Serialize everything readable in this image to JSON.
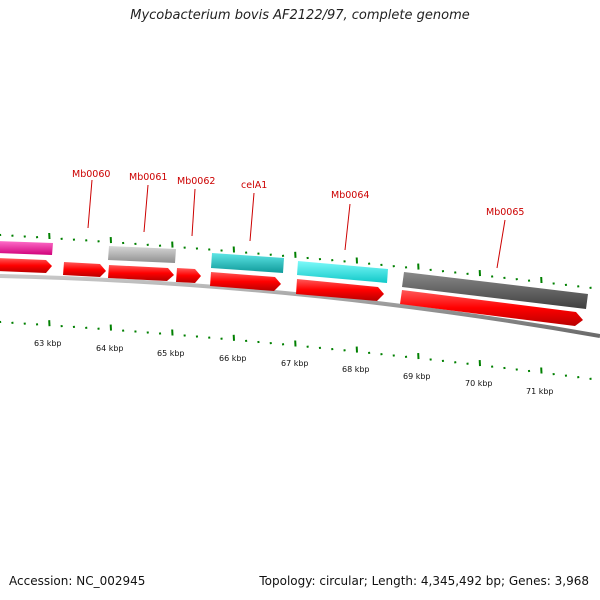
{
  "title": "Mycobacterium bovis AF2122/97, complete genome",
  "footer": {
    "accession": "Accession: NC_002945",
    "stats": "Topology: circular; Length: 4,345,492 bp; Genes: 3,968"
  },
  "gene_labels": [
    "Mb0060",
    "Mb0061",
    "Mb0062",
    "celA1",
    "Mb0064",
    "Mb0065"
  ],
  "kbp_labels": [
    "63 kbp",
    "64 kbp",
    "65 kbp",
    "66 kbp",
    "67 kbp",
    "68 kbp",
    "69 kbp",
    "70 kbp",
    "71 kbp"
  ],
  "colors": {
    "cds": "#ff0000",
    "gene_label": "#cc0000",
    "tick": "#008000",
    "backbone": "#888888",
    "feature_magenta": "#ff1aa0",
    "feature_lightgray": "#bbbbbb",
    "feature_teal": "#1fc4c4",
    "feature_cyan": "#1ff0f0",
    "feature_darkgray": "#666666"
  }
}
